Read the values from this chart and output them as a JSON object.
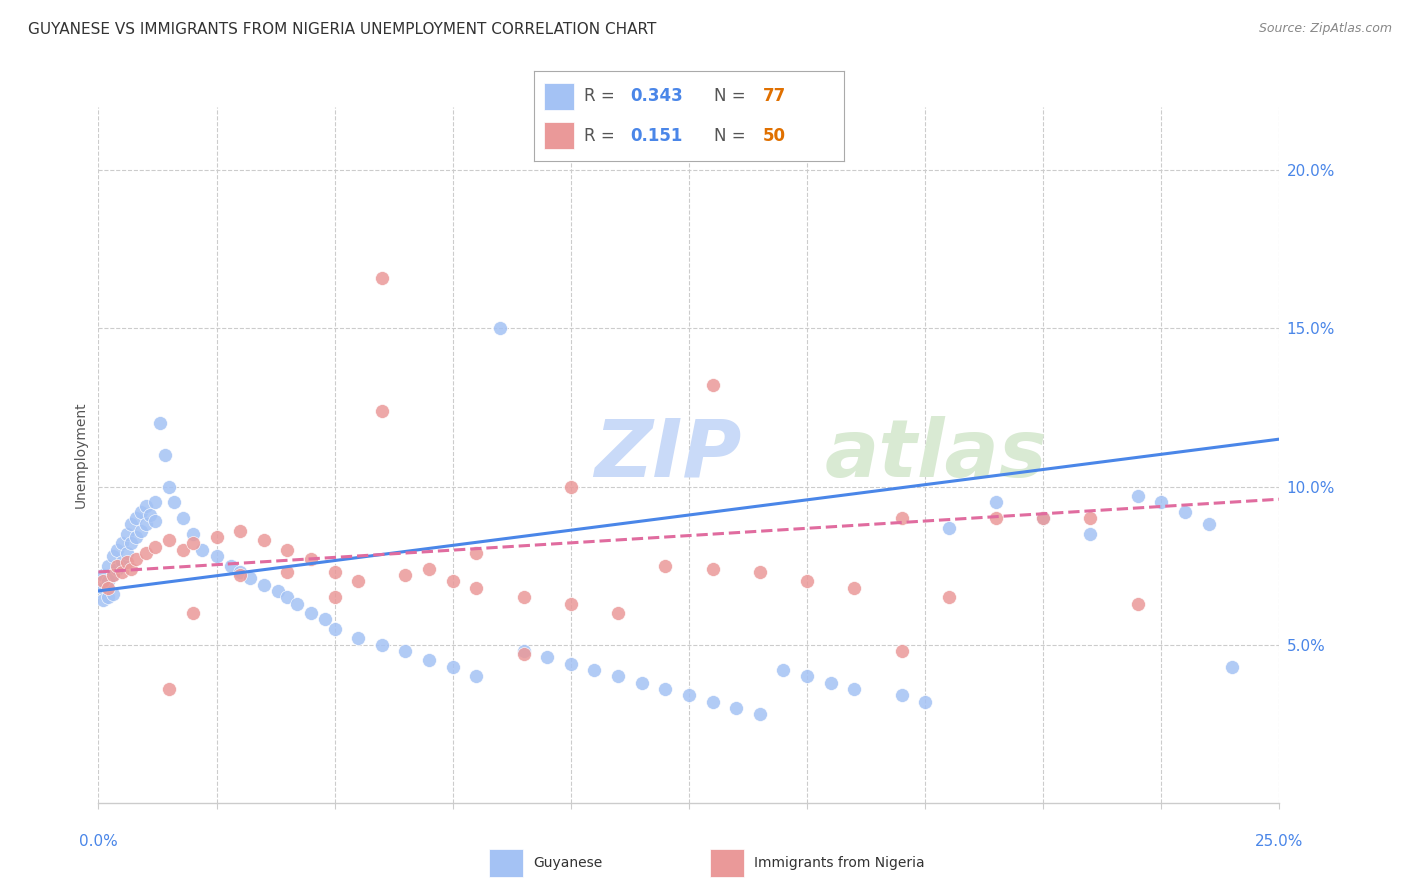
{
  "title": "GUYANESE VS IMMIGRANTS FROM NIGERIA UNEMPLOYMENT CORRELATION CHART",
  "source": "Source: ZipAtlas.com",
  "ylabel": "Unemployment",
  "right_yticks": [
    "5.0%",
    "10.0%",
    "15.0%",
    "20.0%"
  ],
  "right_ytick_vals": [
    0.05,
    0.1,
    0.15,
    0.2
  ],
  "legend_bottom_blue": "Guyanese",
  "legend_bottom_pink": "Immigrants from Nigeria",
  "blue_color": "#a4c2f4",
  "pink_color": "#ea9999",
  "blue_line_color": "#4a86e8",
  "pink_line_color": "#e06c9f",
  "watermark_zip_color": "#c9daf8",
  "watermark_atlas_color": "#d9ead3",
  "background_color": "#ffffff",
  "grid_color": "#cccccc",
  "xlim": [
    0.0,
    0.25
  ],
  "ylim": [
    0.0,
    0.22
  ],
  "title_fontsize": 11,
  "source_fontsize": 9,
  "label_fontsize": 10,
  "r_blue": "0.343",
  "n_blue": "77",
  "r_pink": "0.151",
  "n_pink": "50",
  "blue_trend": [
    0.067,
    0.115
  ],
  "pink_trend": [
    0.073,
    0.096
  ],
  "blue_scatter_x": [
    0.001,
    0.001,
    0.001,
    0.002,
    0.002,
    0.002,
    0.003,
    0.003,
    0.003,
    0.004,
    0.004,
    0.005,
    0.005,
    0.006,
    0.006,
    0.007,
    0.007,
    0.008,
    0.008,
    0.009,
    0.009,
    0.01,
    0.01,
    0.011,
    0.012,
    0.012,
    0.013,
    0.014,
    0.015,
    0.016,
    0.018,
    0.02,
    0.022,
    0.025,
    0.028,
    0.03,
    0.032,
    0.035,
    0.038,
    0.04,
    0.042,
    0.045,
    0.048,
    0.05,
    0.055,
    0.06,
    0.065,
    0.07,
    0.075,
    0.08,
    0.085,
    0.09,
    0.095,
    0.1,
    0.105,
    0.11,
    0.115,
    0.12,
    0.125,
    0.13,
    0.135,
    0.14,
    0.145,
    0.15,
    0.155,
    0.16,
    0.17,
    0.175,
    0.18,
    0.19,
    0.2,
    0.21,
    0.22,
    0.225,
    0.23,
    0.235,
    0.24
  ],
  "blue_scatter_y": [
    0.072,
    0.068,
    0.064,
    0.075,
    0.07,
    0.065,
    0.078,
    0.072,
    0.066,
    0.08,
    0.074,
    0.082,
    0.076,
    0.085,
    0.079,
    0.088,
    0.082,
    0.09,
    0.084,
    0.092,
    0.086,
    0.094,
    0.088,
    0.091,
    0.095,
    0.089,
    0.12,
    0.11,
    0.1,
    0.095,
    0.09,
    0.085,
    0.08,
    0.078,
    0.075,
    0.073,
    0.071,
    0.069,
    0.067,
    0.065,
    0.063,
    0.06,
    0.058,
    0.055,
    0.052,
    0.05,
    0.048,
    0.045,
    0.043,
    0.04,
    0.15,
    0.048,
    0.046,
    0.044,
    0.042,
    0.04,
    0.038,
    0.036,
    0.034,
    0.032,
    0.03,
    0.028,
    0.042,
    0.04,
    0.038,
    0.036,
    0.034,
    0.032,
    0.087,
    0.095,
    0.09,
    0.085,
    0.097,
    0.095,
    0.092,
    0.088,
    0.043
  ],
  "pink_scatter_x": [
    0.001,
    0.002,
    0.003,
    0.004,
    0.005,
    0.006,
    0.007,
    0.008,
    0.01,
    0.012,
    0.015,
    0.018,
    0.02,
    0.025,
    0.03,
    0.035,
    0.04,
    0.045,
    0.05,
    0.055,
    0.06,
    0.065,
    0.07,
    0.075,
    0.08,
    0.09,
    0.1,
    0.11,
    0.12,
    0.13,
    0.14,
    0.15,
    0.16,
    0.17,
    0.18,
    0.19,
    0.2,
    0.21,
    0.22,
    0.06,
    0.08,
    0.1,
    0.03,
    0.04,
    0.05,
    0.13,
    0.02,
    0.015,
    0.17,
    0.09
  ],
  "pink_scatter_y": [
    0.07,
    0.068,
    0.072,
    0.075,
    0.073,
    0.076,
    0.074,
    0.077,
    0.079,
    0.081,
    0.083,
    0.08,
    0.082,
    0.084,
    0.086,
    0.083,
    0.08,
    0.077,
    0.073,
    0.07,
    0.166,
    0.072,
    0.074,
    0.07,
    0.068,
    0.065,
    0.063,
    0.06,
    0.075,
    0.132,
    0.073,
    0.07,
    0.068,
    0.09,
    0.065,
    0.09,
    0.09,
    0.09,
    0.063,
    0.124,
    0.079,
    0.1,
    0.072,
    0.073,
    0.065,
    0.074,
    0.06,
    0.036,
    0.048,
    0.047
  ]
}
